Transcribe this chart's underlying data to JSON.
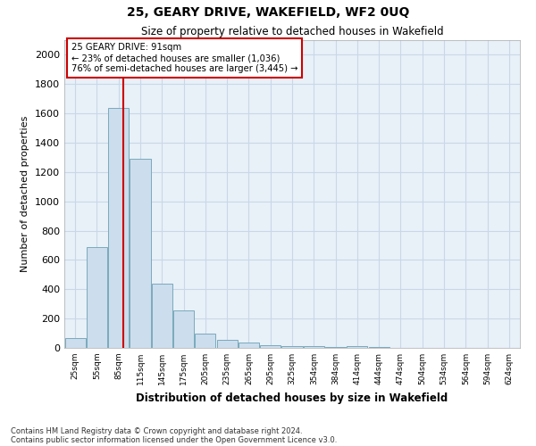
{
  "title1": "25, GEARY DRIVE, WAKEFIELD, WF2 0UQ",
  "title2": "Size of property relative to detached houses in Wakefield",
  "xlabel": "Distribution of detached houses by size in Wakefield",
  "ylabel": "Number of detached properties",
  "bar_color": "#ccdded",
  "bar_edge_color": "#7aaabb",
  "categories": [
    "25sqm",
    "55sqm",
    "85sqm",
    "115sqm",
    "145sqm",
    "175sqm",
    "205sqm",
    "235sqm",
    "265sqm",
    "295sqm",
    "325sqm",
    "354sqm",
    "384sqm",
    "414sqm",
    "444sqm",
    "474sqm",
    "504sqm",
    "534sqm",
    "564sqm",
    "594sqm",
    "624sqm"
  ],
  "values": [
    65,
    690,
    1640,
    1290,
    440,
    255,
    95,
    55,
    35,
    20,
    15,
    10,
    7,
    15,
    5,
    3,
    2,
    2,
    2,
    1,
    1
  ],
  "ylim": [
    0,
    2100
  ],
  "yticks": [
    0,
    200,
    400,
    600,
    800,
    1000,
    1200,
    1400,
    1600,
    1800,
    2000
  ],
  "vline_x": 2.2,
  "vline_color": "#cc0000",
  "annotation_text": "25 GEARY DRIVE: 91sqm\n← 23% of detached houses are smaller (1,036)\n76% of semi-detached houses are larger (3,445) →",
  "annotation_box_color": "#cc0000",
  "footnote1": "Contains HM Land Registry data © Crown copyright and database right 2024.",
  "footnote2": "Contains public sector information licensed under the Open Government Licence v3.0.",
  "grid_color": "#c8d8e8",
  "plot_bg_color": "#e8f0f8"
}
